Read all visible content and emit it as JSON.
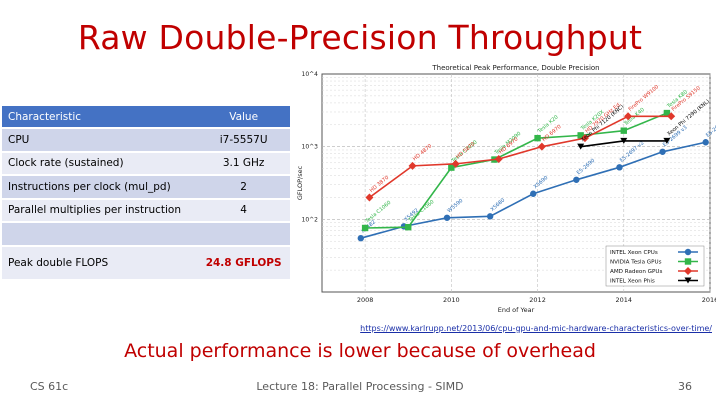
{
  "slide": {
    "title": "Raw Double-Precision Throughput",
    "subtitle": "Actual performance is lower because of overhead",
    "url": "https://www.karlrupp.net/2013/06/cpu-gpu-and-mic-hardware-characteristics-over-time/",
    "footer_left": "CS 61c",
    "footer_center": "Lecture 18: Parallel Processing - SIMD",
    "footer_right": "36"
  },
  "table": {
    "headers": [
      "Characteristic",
      "Value"
    ],
    "rows": [
      {
        "label": "CPU",
        "value": "i7-5557U"
      },
      {
        "label": "Clock rate (sustained)",
        "value": "3.1 GHz"
      },
      {
        "label": "Instructions per clock (mul_pd)",
        "value": "2"
      },
      {
        "label": "Parallel multiplies per instruction",
        "value": "4"
      },
      {
        "label": "",
        "value": ""
      },
      {
        "label": "Peak double FLOPS",
        "value": "24.8 GFLOPS"
      }
    ]
  },
  "colors": {
    "title": "#c00000",
    "header_bg": "#4472c4",
    "row_odd": "#cfd5ea",
    "row_even": "#e9ebf5",
    "intel": "#2f6fb5",
    "nvidia": "#33b64a",
    "amd": "#e0382b",
    "xeon_phi": "#000000"
  },
  "chart_data": {
    "type": "line",
    "title": "Theoretical Peak Performance, Double Precision",
    "xlabel": "End of Year",
    "ylabel": "GFLOP/sec",
    "xlim": [
      2007,
      2016
    ],
    "ylim_log10": [
      1,
      4
    ],
    "x_ticks": [
      "2008",
      "2010",
      "2012",
      "2014",
      "2016"
    ],
    "y_ticks": [
      "10^2",
      "10^3",
      "10^4"
    ],
    "grid": true,
    "legend_position": "bottom-right",
    "series": [
      {
        "name": "INTEL Xeon CPUs",
        "x": [
          2007.9,
          2008.9,
          2009.9,
          2010.9,
          2011.9,
          2012.9,
          2013.9,
          2014.9,
          2015.9
        ],
        "y": [
          55,
          80,
          105,
          110,
          225,
          350,
          520,
          850,
          1150
        ],
        "labels": [
          "X5482",
          "X5492",
          "W5590",
          "X5680",
          "X5690",
          "E5-2690",
          "E5-2697 v2",
          "E5-2699 v3",
          "E5-2699 v3"
        ]
      },
      {
        "name": "NVIDIA Tesla GPUs",
        "x": [
          2008.0,
          2009.0,
          2010.0,
          2011.0,
          2012.0,
          2013.0,
          2014.0,
          2015.0
        ],
        "y": [
          76,
          78,
          515,
          665,
          1310,
          1430,
          1660,
          2900
        ],
        "labels": [
          "Tesla C1060",
          "Tesla C1060",
          "Tesla C2050",
          "Tesla M2090",
          "Tesla K20",
          "Tesla K20X",
          "Tesla K40",
          "Tesla K80"
        ]
      },
      {
        "name": "AMD Radeon GPUs",
        "x": [
          2008.1,
          2009.1,
          2010.1,
          2011.1,
          2012.1,
          2013.1,
          2014.1,
          2015.1
        ],
        "y": [
          200,
          544,
          580,
          676,
          1000,
          1310,
          2620,
          2620
        ],
        "labels": [
          "HD 3870",
          "HD 4870",
          "HD 5870",
          "HD 6970",
          "HD 6970",
          "HD 7970 GHz Ed.",
          "FirePro W9100",
          "FirePro S9150"
        ]
      },
      {
        "name": "INTEL Xeon Phis",
        "x": [
          2013.0,
          2014.0,
          2015.0
        ],
        "y": [
          1000,
          1200,
          1200
        ],
        "labels": [
          "Xeon Phi 7120 (KNC)",
          "",
          "Xeon Phi 7290 (KNL)"
        ]
      }
    ]
  }
}
